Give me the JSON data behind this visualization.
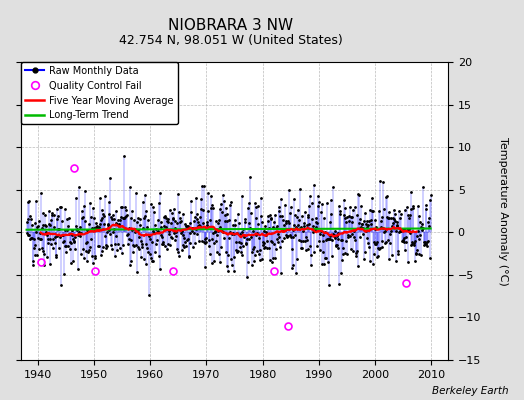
{
  "title": "NIOBRARA 3 NW",
  "subtitle": "42.754 N, 98.051 W (United States)",
  "ylabel": "Temperature Anomaly (°C)",
  "credit": "Berkeley Earth",
  "xlim": [
    1937,
    2013
  ],
  "ylim": [
    -15,
    20
  ],
  "yticks": [
    -15,
    -10,
    -5,
    0,
    5,
    10,
    15,
    20
  ],
  "xticks": [
    1940,
    1950,
    1960,
    1970,
    1980,
    1990,
    2000,
    2010
  ],
  "bg_color": "#e0e0e0",
  "plot_bg_color": "#ffffff",
  "raw_line_color": "#0000ff",
  "raw_dot_color": "#000000",
  "ma_color": "#ff0000",
  "trend_color": "#00bb00",
  "qc_color": "#ff00ff",
  "seed": 42,
  "n_months": 864,
  "start_year": 1938,
  "trend_slope": 0.003,
  "noise_std": 2.2,
  "qc_fails": [
    {
      "year": 1946.5,
      "anomaly": 7.5
    },
    {
      "year": 1940.5,
      "anomaly": -3.5
    },
    {
      "year": 1950.2,
      "anomaly": -4.5
    },
    {
      "year": 1964.0,
      "anomaly": -4.5
    },
    {
      "year": 1982.0,
      "anomaly": -4.5
    },
    {
      "year": 1984.5,
      "anomaly": -11.0
    },
    {
      "year": 2005.5,
      "anomaly": -6.0
    }
  ],
  "title_fontsize": 11,
  "subtitle_fontsize": 9,
  "tick_fontsize": 8,
  "legend_fontsize": 7,
  "ylabel_fontsize": 8
}
